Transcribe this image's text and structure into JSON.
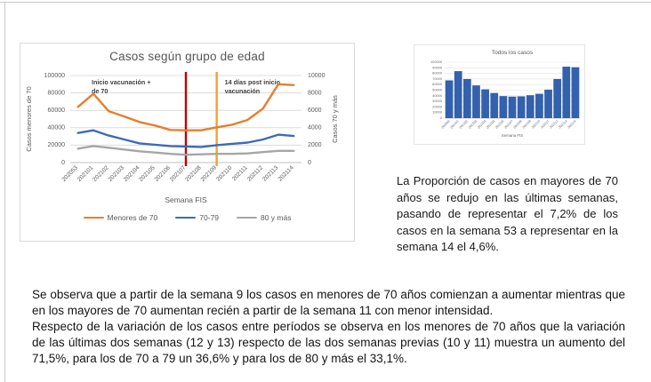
{
  "chart_data": [
    {
      "id": "casos-segun-grupo-de-edad",
      "type": "line",
      "title": "Casos según grupo de edad",
      "xlabel": "Semana FIS",
      "ylabel_left": "Casos menores de 70",
      "ylabel_right": "Casos 70 y más",
      "ylim_left": [
        0,
        100000
      ],
      "ylim_right": [
        0,
        10000
      ],
      "yticks_left": [
        0,
        20000,
        40000,
        60000,
        80000,
        100000
      ],
      "yticks_right": [
        0,
        2000,
        4000,
        6000,
        8000,
        10000
      ],
      "grid": true,
      "legend_position": "bottom",
      "categories": [
        "202053",
        "202101",
        "202102",
        "202103",
        "202104",
        "202105",
        "202106",
        "202107",
        "202108",
        "202109",
        "202110",
        "202111",
        "202112",
        "202113",
        "202114"
      ],
      "series": [
        {
          "name": "Menores de 70",
          "axis": "left",
          "color": "#E87E2D",
          "values": [
            64000,
            79000,
            59000,
            53000,
            46500,
            42500,
            37500,
            37000,
            37000,
            40500,
            43500,
            49000,
            62000,
            90000,
            89000
          ]
        },
        {
          "name": "70-79",
          "axis": "right",
          "color": "#3F6AB5",
          "values": [
            3400,
            3700,
            3100,
            2650,
            2200,
            2050,
            1900,
            1850,
            1800,
            2000,
            2150,
            2300,
            2650,
            3200,
            3050
          ]
        },
        {
          "name": "80 y más",
          "axis": "right",
          "color": "#A6A6A6",
          "values": [
            1600,
            1900,
            1700,
            1500,
            1300,
            1150,
            1000,
            900,
            950,
            1000,
            1000,
            1050,
            1200,
            1350,
            1350
          ]
        }
      ],
      "annotations": [
        {
          "label": "Inicio vacunación + de 70",
          "x_category": "202107",
          "line_color": "#C00000",
          "label_side": "left"
        },
        {
          "label": "14 días post inicio vacunación",
          "x_category": "202109",
          "line_color": "#F2A12F",
          "label_side": "right"
        }
      ]
    },
    {
      "id": "todos-los-casos",
      "type": "bar",
      "title": "Todos los casos",
      "xlabel": "Semana FIS",
      "ylim": [
        0,
        100000
      ],
      "yticks": [
        0,
        10000,
        20000,
        30000,
        40000,
        50000,
        60000,
        70000,
        80000,
        90000,
        100000
      ],
      "grid": true,
      "bar_color": "#3361AE",
      "categories": [
        "202053",
        "202101",
        "202102",
        "202103",
        "202104",
        "202105",
        "202106",
        "202107",
        "202108",
        "202109",
        "202110",
        "202111",
        "202112",
        "202113",
        "202114"
      ],
      "values": [
        67500,
        84000,
        70000,
        58500,
        51500,
        45000,
        39500,
        38500,
        39000,
        41000,
        43500,
        51000,
        70000,
        92000,
        91000
      ]
    }
  ],
  "right_panel": {
    "paragraph": "La Proporción de casos en mayores de 70 años se redujo en las últimas semanas, pasando de representar el 7,2% de los casos en la semana 53 a representar en la semana 14 el 4,6%."
  },
  "bottom_panel": {
    "paragraph_1": "Se observa que a partir de la semana 9 los casos en menores de 70 años comienzan a aumentar mientras que en los mayores de 70 aumentan recién a partir de la semana 11 con menor intensidad.",
    "paragraph_2": "Respecto de la variación de los casos entre períodos se observa en los menores de 70 años que la variación de las últimas dos semanas (12 y 13) respecto de las dos semanas previas (10 y 11) muestra un aumento del 71,5%, para los de 70 a 79 un 36,6% y para los de 80 y más el 33,1%."
  }
}
